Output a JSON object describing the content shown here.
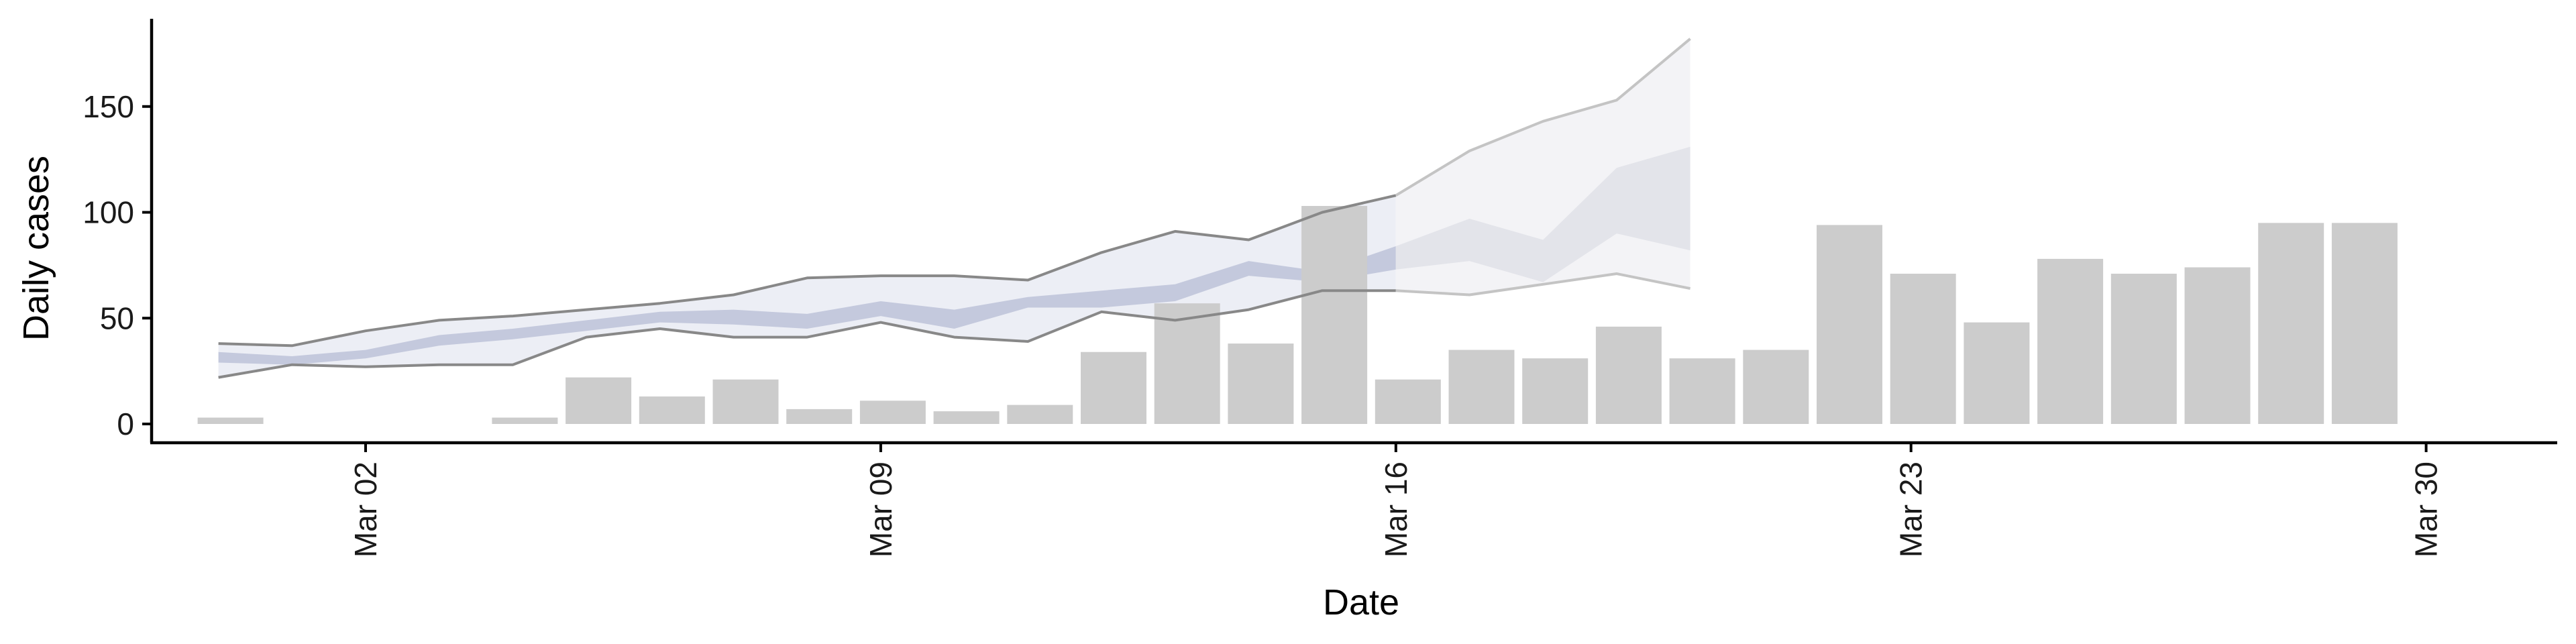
{
  "chart_data": {
    "type": "bar",
    "xlabel": "Date",
    "ylabel": "Daily cases",
    "x_tick_labels": [
      "Mar 02",
      "Mar 09",
      "Mar 16",
      "Mar 23",
      "Mar 30"
    ],
    "x_tick_dates": [
      "2020-03-02",
      "2020-03-09",
      "2020-03-16",
      "2020-03-23",
      "2020-03-30"
    ],
    "y_ticks": [
      0,
      50,
      100,
      150
    ],
    "ylim": [
      -8,
      190
    ],
    "xlim": [
      "2020-02-26",
      "2020-04-01"
    ],
    "grid": false,
    "legend": "none",
    "colors": {
      "bars": "#cccccc",
      "outer_band": "#eceef5",
      "inner_band": "#c4c9dd",
      "outer_band_late": "#f3f3f6",
      "inner_band_late": "#e3e4ea",
      "bound_line": "#888888",
      "bound_line_late": "#c4c4c4",
      "axis": "#000000"
    },
    "bars": [
      {
        "date": "2020-02-29",
        "value": 3
      },
      {
        "date": "2020-03-04",
        "value": 3
      },
      {
        "date": "2020-03-05",
        "value": 22
      },
      {
        "date": "2020-03-06",
        "value": 13
      },
      {
        "date": "2020-03-07",
        "value": 21
      },
      {
        "date": "2020-03-08",
        "value": 7
      },
      {
        "date": "2020-03-09",
        "value": 11
      },
      {
        "date": "2020-03-10",
        "value": 6
      },
      {
        "date": "2020-03-11",
        "value": 9
      },
      {
        "date": "2020-03-12",
        "value": 34
      },
      {
        "date": "2020-03-13",
        "value": 57
      },
      {
        "date": "2020-03-14",
        "value": 38
      },
      {
        "date": "2020-03-15",
        "value": 103
      },
      {
        "date": "2020-03-16",
        "value": 21
      },
      {
        "date": "2020-03-17",
        "value": 35
      },
      {
        "date": "2020-03-18",
        "value": 31
      },
      {
        "date": "2020-03-19",
        "value": 46
      },
      {
        "date": "2020-03-20",
        "value": 31
      },
      {
        "date": "2020-03-21",
        "value": 35
      },
      {
        "date": "2020-03-22",
        "value": 94
      },
      {
        "date": "2020-03-23",
        "value": 71
      },
      {
        "date": "2020-03-24",
        "value": 48
      },
      {
        "date": "2020-03-25",
        "value": 78
      },
      {
        "date": "2020-03-26",
        "value": 71
      },
      {
        "date": "2020-03-27",
        "value": 74
      },
      {
        "date": "2020-03-28",
        "value": 95
      },
      {
        "date": "2020-03-29",
        "value": 95
      }
    ],
    "band_dates": [
      "2020-02-29",
      "2020-03-01",
      "2020-03-02",
      "2020-03-03",
      "2020-03-04",
      "2020-03-05",
      "2020-03-06",
      "2020-03-07",
      "2020-03-08",
      "2020-03-09",
      "2020-03-10",
      "2020-03-11",
      "2020-03-12",
      "2020-03-13",
      "2020-03-14",
      "2020-03-15",
      "2020-03-16",
      "2020-03-17",
      "2020-03-18",
      "2020-03-19",
      "2020-03-20",
      "2020-03-21"
    ],
    "band_late_from": "2020-03-16",
    "outer_upper": [
      38,
      37,
      44,
      49,
      51,
      54,
      57,
      61,
      69,
      70,
      70,
      68,
      81,
      91,
      87,
      100,
      108,
      129,
      143,
      153,
      182,
      182
    ],
    "outer_lower": [
      22,
      28,
      27,
      28,
      28,
      41,
      45,
      41,
      41,
      48,
      41,
      39,
      53,
      49,
      54,
      63,
      63,
      61,
      66,
      71,
      64,
      64
    ],
    "inner_upper": [
      34,
      32,
      35,
      42,
      45,
      49,
      53,
      54,
      52,
      58,
      54,
      60,
      63,
      66,
      77,
      72,
      84,
      97,
      87,
      121,
      131,
      131
    ],
    "inner_lower": [
      29,
      28,
      31,
      37,
      40,
      44,
      48,
      47,
      45,
      51,
      45,
      55,
      55,
      58,
      70,
      67,
      73,
      77,
      67,
      90,
      82,
      82
    ],
    "band_end": "2020-03-21"
  }
}
